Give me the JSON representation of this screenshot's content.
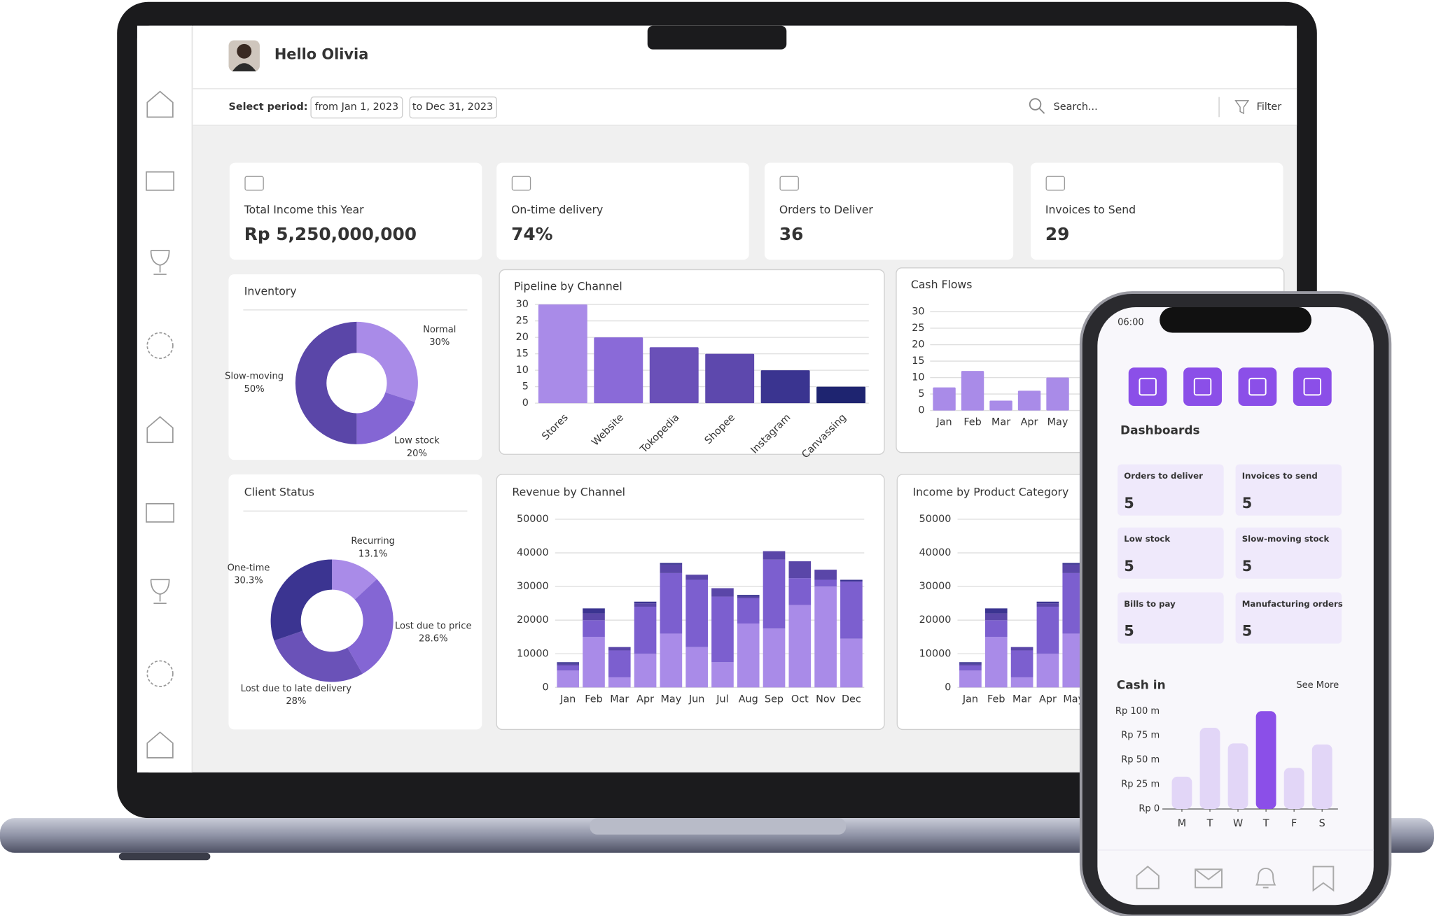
{
  "header": {
    "greeting": "Hello Olivia",
    "period_label": "Select period:",
    "from": "from Jan 1, 2023",
    "to": "to Dec 31, 2023",
    "search": "Search...",
    "filter": "Filter"
  },
  "kpis": [
    {
      "label": "Total Income this Year",
      "value": "Rp 5,250,000,000"
    },
    {
      "label": "On-time delivery",
      "value": "74%"
    },
    {
      "label": "Orders to Deliver",
      "value": "36"
    },
    {
      "label": "Invoices to Send",
      "value": "29"
    }
  ],
  "chart_data": [
    {
      "type": "pie",
      "title": "Inventory",
      "categories": [
        "Normal",
        "Low stock",
        "Slow-moving"
      ],
      "values": [
        30,
        20,
        50
      ],
      "value_labels": [
        "30%",
        "20%",
        "50%"
      ],
      "colors": [
        "#a98be8",
        "#8466d4",
        "#5a46a8"
      ]
    },
    {
      "type": "pie",
      "title": "Client Status",
      "categories": [
        "Recurring",
        "Lost due to price",
        "Lost due to late delivery",
        "One-time"
      ],
      "values": [
        13.1,
        28.6,
        28,
        30.3
      ],
      "value_labels": [
        "13.1%",
        "28.6%",
        "28%",
        "30.3%"
      ],
      "colors": [
        "#a98be8",
        "#8466d4",
        "#6a52b8",
        "#3b3491"
      ]
    },
    {
      "type": "bar",
      "title": "Pipeline by Channel",
      "categories": [
        "Stores",
        "Website",
        "Tokopedia",
        "Shopee",
        "Instagram",
        "Canvassing"
      ],
      "values": [
        30,
        20,
        17,
        15,
        10,
        5
      ],
      "colors": [
        "#a98be8",
        "#8a6ad8",
        "#6a50b8",
        "#5d48ad",
        "#3a3490",
        "#1e2470"
      ],
      "ylim": [
        0,
        30
      ],
      "yticks": [
        0,
        5,
        10,
        15,
        20,
        25,
        30
      ],
      "grid": true
    },
    {
      "type": "bar",
      "title": "Cash Flows",
      "categories": [
        "Jan",
        "Feb",
        "Mar",
        "Apr",
        "May"
      ],
      "values": [
        7,
        12,
        3,
        6,
        10
      ],
      "color": "#a98be8",
      "ylim": [
        0,
        30
      ],
      "yticks": [
        0,
        5,
        10,
        15,
        20,
        25,
        30
      ],
      "grid": true
    },
    {
      "type": "stacked_bar",
      "title": "Revenue by Channel",
      "categories": [
        "Jan",
        "Feb",
        "Mar",
        "Apr",
        "May",
        "Jun",
        "Jul",
        "Aug",
        "Sep",
        "Oct",
        "Nov",
        "Dec"
      ],
      "series": [
        {
          "color": "#a98be8",
          "values": [
            5000,
            15000,
            3000,
            10000,
            16000,
            12000,
            7500,
            19000,
            17500,
            24500,
            30000,
            14500
          ]
        },
        {
          "color": "#7c5fcf",
          "values": [
            1500,
            5000,
            8000,
            14000,
            18000,
            20000,
            19500,
            7500,
            20500,
            8000,
            2000,
            17000
          ]
        },
        {
          "color": "#5a46a8",
          "values": [
            500,
            2000,
            1000,
            1000,
            2500,
            1500,
            2500,
            500,
            2500,
            5000,
            3000,
            0
          ]
        },
        {
          "color": "#3b3491",
          "values": [
            500,
            1500,
            0,
            500,
            500,
            0,
            0,
            500,
            0,
            0,
            0,
            500
          ]
        }
      ],
      "ylim": [
        0,
        50000
      ],
      "yticks": [
        0,
        10000,
        20000,
        30000,
        40000,
        50000
      ],
      "grid": true
    },
    {
      "type": "stacked_bar",
      "title": "Income by Product Category",
      "categories": [
        "Jan",
        "Feb",
        "Mar",
        "Apr",
        "May"
      ],
      "series": [
        {
          "color": "#a98be8",
          "values": [
            5000,
            15000,
            3000,
            10000,
            16000
          ]
        },
        {
          "color": "#7c5fcf",
          "values": [
            1500,
            5000,
            8000,
            14000,
            18000
          ]
        },
        {
          "color": "#5a46a8",
          "values": [
            500,
            2000,
            1000,
            1000,
            2500
          ]
        },
        {
          "color": "#3b3491",
          "values": [
            500,
            1500,
            0,
            500,
            500
          ]
        }
      ],
      "ylim": [
        0,
        50000
      ],
      "yticks": [
        0,
        10000,
        20000,
        30000,
        40000,
        50000
      ],
      "grid": true
    },
    {
      "type": "bar",
      "title": "Cash in",
      "link": "See More",
      "categories": [
        "M",
        "T",
        "W",
        "T",
        "F",
        "S"
      ],
      "values": [
        33,
        83,
        67,
        100,
        42,
        66
      ],
      "colors": [
        "#e2d6f7",
        "#e2d6f7",
        "#e2d6f7",
        "#8b4fe8",
        "#e2d6f7",
        "#e2d6f7"
      ],
      "ylim": [
        0,
        100
      ],
      "yticks": [
        {
          "value": 0,
          "label": "Rp 0"
        },
        {
          "value": 25,
          "label": "Rp 25 m"
        },
        {
          "value": 50,
          "label": "Rp 50 m"
        },
        {
          "value": 75,
          "label": "Rp 75 m"
        },
        {
          "value": 100,
          "label": "Rp 100 m"
        }
      ],
      "grid": false
    }
  ],
  "phone": {
    "time": "06:00",
    "section": "Dashboards",
    "tiles": [
      {
        "label": "Orders to deliver",
        "value": "5"
      },
      {
        "label": "Invoices to send",
        "value": "5"
      },
      {
        "label": "Low stock",
        "value": "5"
      },
      {
        "label": "Slow-moving stock",
        "value": "5"
      },
      {
        "label": "Bills to pay",
        "value": "5"
      },
      {
        "label": "Manufacturing orders",
        "value": "5"
      }
    ]
  }
}
